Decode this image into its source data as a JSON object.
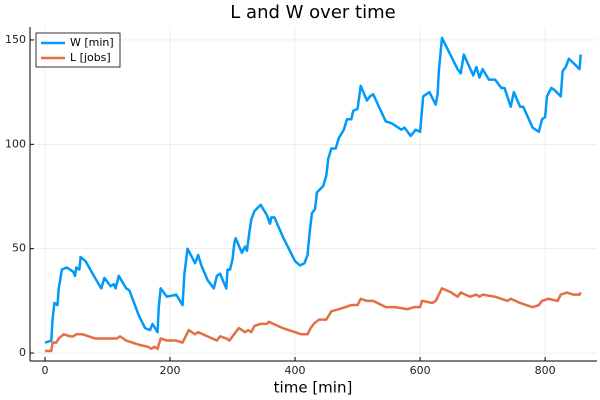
{
  "chart_data": {
    "type": "line",
    "title": "L and W over time",
    "xlabel": "time [min]",
    "xlim": [
      -24,
      883
    ],
    "ylim": [
      -3.8,
      156.2
    ],
    "xticks": [
      0,
      200,
      400,
      600,
      800
    ],
    "yticks": [
      0,
      50,
      100,
      150
    ],
    "grid": true,
    "legend": "top-left",
    "series": [
      {
        "name": "W [min]",
        "color": "#009af9",
        "x": [
          0,
          10,
          12,
          15,
          20,
          22,
          27,
          35,
          45,
          48,
          50,
          55,
          57,
          65,
          80,
          90,
          95,
          105,
          110,
          113,
          118,
          130,
          135,
          150,
          160,
          168,
          172,
          180,
          182,
          185,
          195,
          210,
          220,
          223,
          228,
          235,
          240,
          245,
          250,
          260,
          270,
          275,
          280,
          290,
          292,
          296,
          300,
          303,
          305,
          315,
          320,
          323,
          327,
          330,
          335,
          345,
          355,
          360,
          362,
          367,
          380,
          400,
          408,
          415,
          420,
          423,
          427,
          432,
          435,
          445,
          450,
          453,
          458,
          465,
          470,
          478,
          483,
          490,
          493,
          500,
          505,
          515,
          520,
          525,
          545,
          555,
          570,
          575,
          585,
          593,
          600,
          605,
          615,
          625,
          628,
          630,
          635,
          645,
          660,
          665,
          670,
          685,
          690,
          695,
          700,
          710,
          720,
          730,
          735,
          745,
          750,
          760,
          765,
          780,
          790,
          795,
          800,
          803,
          810,
          815,
          825,
          828,
          833,
          838,
          845,
          855,
          857
        ],
        "values": [
          5,
          6,
          16,
          24,
          23,
          31,
          40,
          41,
          39,
          37,
          41,
          40,
          46,
          44,
          36,
          31,
          36,
          32,
          33,
          31,
          37,
          31,
          30,
          18,
          12,
          11,
          14,
          10,
          22,
          31,
          27,
          28,
          23,
          38,
          50,
          46,
          43,
          47,
          42,
          35,
          31,
          37,
          38,
          31,
          40,
          40,
          45,
          53,
          55,
          48,
          51,
          49,
          58,
          64,
          68,
          71,
          66,
          62,
          65,
          65,
          56,
          44,
          42,
          43,
          47,
          57,
          67,
          69,
          77,
          80,
          85,
          93,
          98,
          98,
          103,
          107,
          112,
          112,
          116,
          117,
          128,
          121,
          123,
          124,
          111,
          110,
          107,
          108,
          104,
          107,
          106,
          123,
          125,
          119,
          124,
          135,
          151,
          145,
          136,
          134,
          143,
          133,
          137,
          132,
          136,
          131,
          131,
          127,
          127,
          118,
          125,
          118,
          118,
          108,
          106,
          112,
          113,
          123,
          127,
          126,
          123,
          135,
          137,
          141,
          139,
          136,
          143
        ]
      },
      {
        "name": "L [jobs]",
        "color": "#e26f46",
        "x": [
          0,
          10,
          12,
          18,
          22,
          30,
          40,
          45,
          50,
          60,
          80,
          100,
          115,
          120,
          130,
          150,
          165,
          170,
          175,
          180,
          185,
          195,
          210,
          220,
          225,
          230,
          240,
          245,
          260,
          275,
          280,
          290,
          295,
          300,
          305,
          310,
          320,
          325,
          330,
          335,
          345,
          355,
          358,
          365,
          380,
          400,
          410,
          420,
          425,
          430,
          438,
          450,
          458,
          470,
          480,
          490,
          500,
          505,
          515,
          525,
          545,
          560,
          580,
          590,
          600,
          603,
          620,
          625,
          630,
          635,
          650,
          660,
          665,
          680,
          690,
          695,
          700,
          720,
          730,
          740,
          745,
          760,
          780,
          790,
          795,
          805,
          820,
          825,
          835,
          845,
          855,
          857
        ],
        "values": [
          1,
          1,
          5,
          5,
          7,
          9,
          8,
          8,
          9,
          9,
          7,
          7,
          7,
          8,
          6,
          4,
          3,
          2,
          3,
          2,
          7,
          6,
          6,
          5,
          8,
          11,
          9,
          10,
          8,
          6,
          8,
          7,
          6,
          8,
          10,
          12,
          10,
          11,
          10,
          13,
          14,
          14,
          15,
          14,
          12,
          10,
          9,
          9,
          12,
          14,
          16,
          16,
          20,
          21,
          22,
          23,
          23,
          26,
          25,
          25,
          22,
          22,
          21,
          22,
          22,
          25,
          24,
          25,
          28,
          31,
          29,
          27,
          29,
          27,
          28,
          27,
          28,
          27,
          26,
          25,
          26,
          24,
          22,
          23,
          25,
          26,
          25,
          28,
          29,
          28,
          28,
          29
        ]
      }
    ]
  }
}
